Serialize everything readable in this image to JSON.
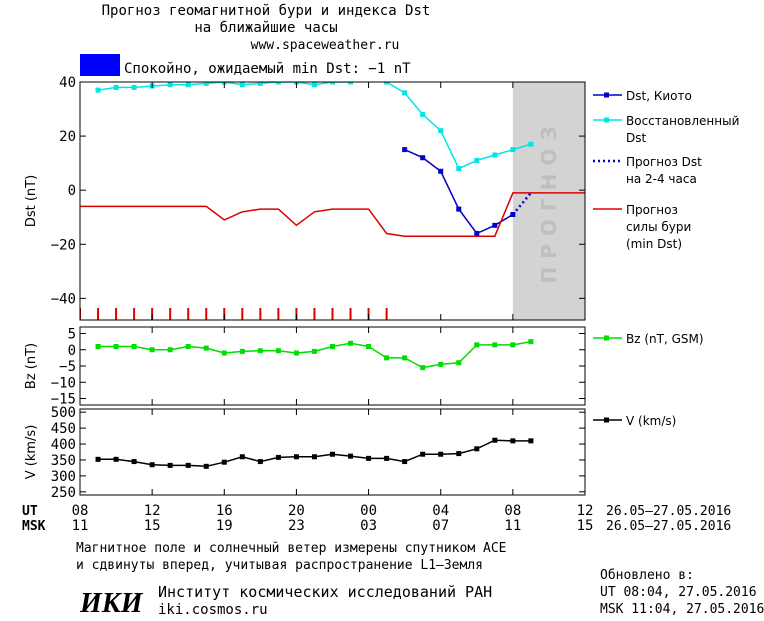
{
  "header": {
    "title_line1": "Прогноз геомагнитной бури и индекса Dst",
    "title_line2": "на ближайшие часы",
    "url": "www.spaceweather.ru"
  },
  "status": {
    "text": "Спокойно, ожидаемый min Dst: −1 nT",
    "color": "#0000ff"
  },
  "chart_data": [
    {
      "type": "line",
      "ylabel": "Dst (nT)",
      "ylim": [
        -48,
        40
      ],
      "yticks": [
        40,
        20,
        0,
        -20,
        -40
      ],
      "forecast_band": {
        "x_start": 8.0,
        "x_end": 12.0,
        "label": "ПРОГНОЗ",
        "color": "#d3d3d3"
      },
      "series": [
        {
          "name": "Dst, Киото",
          "color": "#0000cc",
          "marker": "square",
          "x": [
            2,
            3,
            4,
            5,
            6,
            7,
            8
          ],
          "y": [
            15,
            12,
            7,
            -7,
            -16,
            -13,
            -9
          ]
        },
        {
          "name": "Восстановленный Dst",
          "color": "#00e5e5",
          "marker": "square",
          "x": [
            -15,
            -14,
            -13,
            -12,
            -11,
            -10,
            -9,
            -8,
            -7,
            -6,
            -5,
            -4,
            -3,
            -2,
            -1,
            0,
            1,
            2,
            3,
            4,
            5,
            6,
            7,
            8,
            9
          ],
          "y": [
            37,
            38,
            38,
            38.5,
            39,
            39,
            39.5,
            40,
            39,
            39.5,
            40,
            40,
            39,
            40,
            40,
            41,
            40,
            36,
            28,
            22,
            8,
            11,
            13,
            15,
            17
          ]
        },
        {
          "name": "Прогноз Dst на 2-4 часа",
          "color": "#0000cc",
          "style": "dotted",
          "x": [
            8,
            8.5,
            9
          ],
          "y": [
            -9,
            -5,
            -1
          ]
        },
        {
          "name": "Прогноз силы бури (min Dst)",
          "color": "#dd0000",
          "style": "solid",
          "x": [
            -16,
            -9,
            -8,
            -7,
            -6,
            -5,
            -4,
            -3,
            -2,
            -1,
            0,
            1,
            2,
            3,
            4,
            5,
            6,
            7,
            8,
            12
          ],
          "y": [
            -6,
            -6,
            -11,
            -8,
            -7,
            -7,
            -13,
            -8,
            -7,
            -7,
            -7,
            -16,
            -17,
            -17,
            -17,
            -17,
            -17,
            -17,
            -1,
            -1
          ]
        }
      ],
      "tick_marks": {
        "color": "#dd0000",
        "x": [
          -16,
          -15,
          -14,
          -13,
          -12,
          -11,
          -10,
          -9,
          -8,
          -7,
          -6,
          -5,
          -4,
          -3,
          -2,
          -1,
          0,
          1
        ]
      }
    },
    {
      "type": "line",
      "ylabel": "Bz (nT)",
      "ylim": [
        -17,
        7
      ],
      "yticks": [
        5,
        0,
        -5,
        -10,
        -15
      ],
      "series": [
        {
          "name": "Bz (nT, GSM)",
          "color": "#00dd00",
          "marker": "square",
          "x": [
            -15,
            -14,
            -13,
            -12,
            -11,
            -10,
            -9,
            -8,
            -7,
            -6,
            -5,
            -4,
            -3,
            -2,
            -1,
            0,
            1,
            2,
            3,
            4,
            5,
            6,
            7,
            8,
            9
          ],
          "y": [
            1,
            1,
            1,
            0,
            0,
            1,
            0.5,
            -1,
            -0.5,
            -0.3,
            -0.3,
            -1,
            -0.5,
            1,
            2,
            1,
            -2.5,
            -2.5,
            -5.5,
            -4.5,
            -4,
            1.5,
            1.5,
            1.5,
            2.5
          ]
        }
      ]
    },
    {
      "type": "line",
      "ylabel": "V (km/s)",
      "ylim": [
        240,
        510
      ],
      "yticks": [
        500,
        450,
        400,
        350,
        300,
        250
      ],
      "series": [
        {
          "name": "V (km/s)",
          "color": "#000000",
          "marker": "square",
          "x": [
            -15,
            -14,
            -13,
            -12,
            -11,
            -10,
            -9,
            -8,
            -7,
            -6,
            -5,
            -4,
            -3,
            -2,
            -1,
            0,
            1,
            2,
            3,
            4,
            5,
            6,
            7,
            8,
            9
          ],
          "y": [
            352,
            352,
            345,
            335,
            333,
            333,
            330,
            343,
            360,
            345,
            358,
            360,
            360,
            368,
            362,
            355,
            355,
            345,
            368,
            368,
            370,
            385,
            412,
            410,
            410
          ]
        }
      ]
    }
  ],
  "time_axis": {
    "ut_label": "UT",
    "msk_label": "MSK",
    "ut_ticks": [
      {
        "x": -16,
        "label": "08"
      },
      {
        "x": -12,
        "label": "12"
      },
      {
        "x": -8,
        "label": "16"
      },
      {
        "x": -4,
        "label": "20"
      },
      {
        "x": 0,
        "label": "00"
      },
      {
        "x": 4,
        "label": "04"
      },
      {
        "x": 8,
        "label": "08"
      },
      {
        "x": 12,
        "label": "12"
      }
    ],
    "msk_ticks": [
      {
        "x": -16,
        "label": "11"
      },
      {
        "x": -12,
        "label": "15"
      },
      {
        "x": -8,
        "label": "19"
      },
      {
        "x": -4,
        "label": "23"
      },
      {
        "x": 0,
        "label": "03"
      },
      {
        "x": 4,
        "label": "07"
      },
      {
        "x": 8,
        "label": "11"
      },
      {
        "x": 12,
        "label": "15"
      }
    ],
    "ut_range": "26.05–27.05.2016",
    "msk_range": "26.05–27.05.2016"
  },
  "footer": {
    "note_line1": "Магнитное поле и солнечный ветер измерены спутником ACE",
    "note_line2": "и сдвинуты вперед, учитывая распространение L1–Земля",
    "updated_label": "Обновлено в:",
    "updated_ut": "UT  08:04, 27.05.2016",
    "updated_msk": "MSK 11:04, 27.05.2016",
    "institute": "Институт космических исследований РАН",
    "site": "iki.cosmos.ru",
    "logo_text": "ИКИ"
  }
}
